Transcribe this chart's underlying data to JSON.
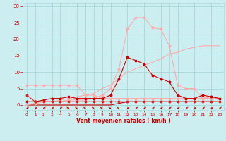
{
  "x": [
    0,
    1,
    2,
    3,
    4,
    5,
    6,
    7,
    8,
    9,
    10,
    11,
    12,
    13,
    14,
    15,
    16,
    17,
    18,
    19,
    20,
    21,
    22,
    23
  ],
  "background_color": "#cceef0",
  "grid_color": "#aadddd",
  "xlabel": "Vent moyen/en rafales ( km/h )",
  "xlabel_color": "#cc0000",
  "tick_color": "#cc0000",
  "ylim": [
    -1.5,
    31
  ],
  "yticks": [
    0,
    5,
    10,
    15,
    20,
    25,
    30
  ],
  "line1_y": [
    3,
    1,
    1,
    1,
    1,
    1,
    1,
    1,
    1,
    1,
    1,
    1,
    1,
    1,
    1,
    1,
    1,
    1,
    1,
    1,
    1,
    1,
    1,
    1
  ],
  "line1_color": "#dd2222",
  "line2_y": [
    6,
    6,
    6,
    6,
    6,
    6,
    6,
    3,
    3,
    2,
    2,
    2,
    2,
    2,
    2,
    2,
    2,
    2,
    2,
    2,
    2,
    2,
    2,
    2
  ],
  "line2_color": "#ffaaaa",
  "line3_y": [
    0,
    0,
    0,
    0,
    0,
    0,
    0,
    0,
    0,
    0,
    0,
    0.5,
    1,
    1,
    1,
    1,
    1,
    1,
    1,
    1,
    1,
    1,
    1,
    1
  ],
  "line3_color": "#cc0000",
  "line4_y": [
    1,
    1,
    1.5,
    2,
    2,
    2.5,
    2,
    2,
    2,
    2,
    3,
    8,
    14.5,
    13.5,
    12.5,
    9,
    8,
    7,
    3,
    2,
    2,
    3,
    2.5,
    2
  ],
  "line4_color": "#cc0000",
  "line5_y": [
    0,
    0.5,
    1,
    1,
    1,
    1.5,
    1.5,
    1.5,
    2,
    3,
    5,
    11,
    23,
    26.5,
    26.5,
    23.5,
    23,
    18,
    6,
    5,
    5,
    2,
    2.5,
    2
  ],
  "line5_color": "#ffaaaa",
  "line6_y": [
    0,
    0.5,
    1,
    1,
    1.5,
    2,
    2.5,
    3,
    3.5,
    5,
    6,
    8,
    10,
    11,
    12,
    13,
    14,
    15.5,
    16,
    17,
    17.5,
    18,
    18,
    18
  ],
  "line6_color": "#ffaaaa",
  "arrow_dirs": [
    "L",
    "L",
    "L",
    "L",
    "L",
    "R",
    "R",
    "R",
    "R",
    "R",
    "R",
    "R",
    "L",
    "L",
    "L",
    "L",
    "L",
    "L",
    "L",
    "L",
    "L",
    "L",
    "L",
    "L"
  ]
}
